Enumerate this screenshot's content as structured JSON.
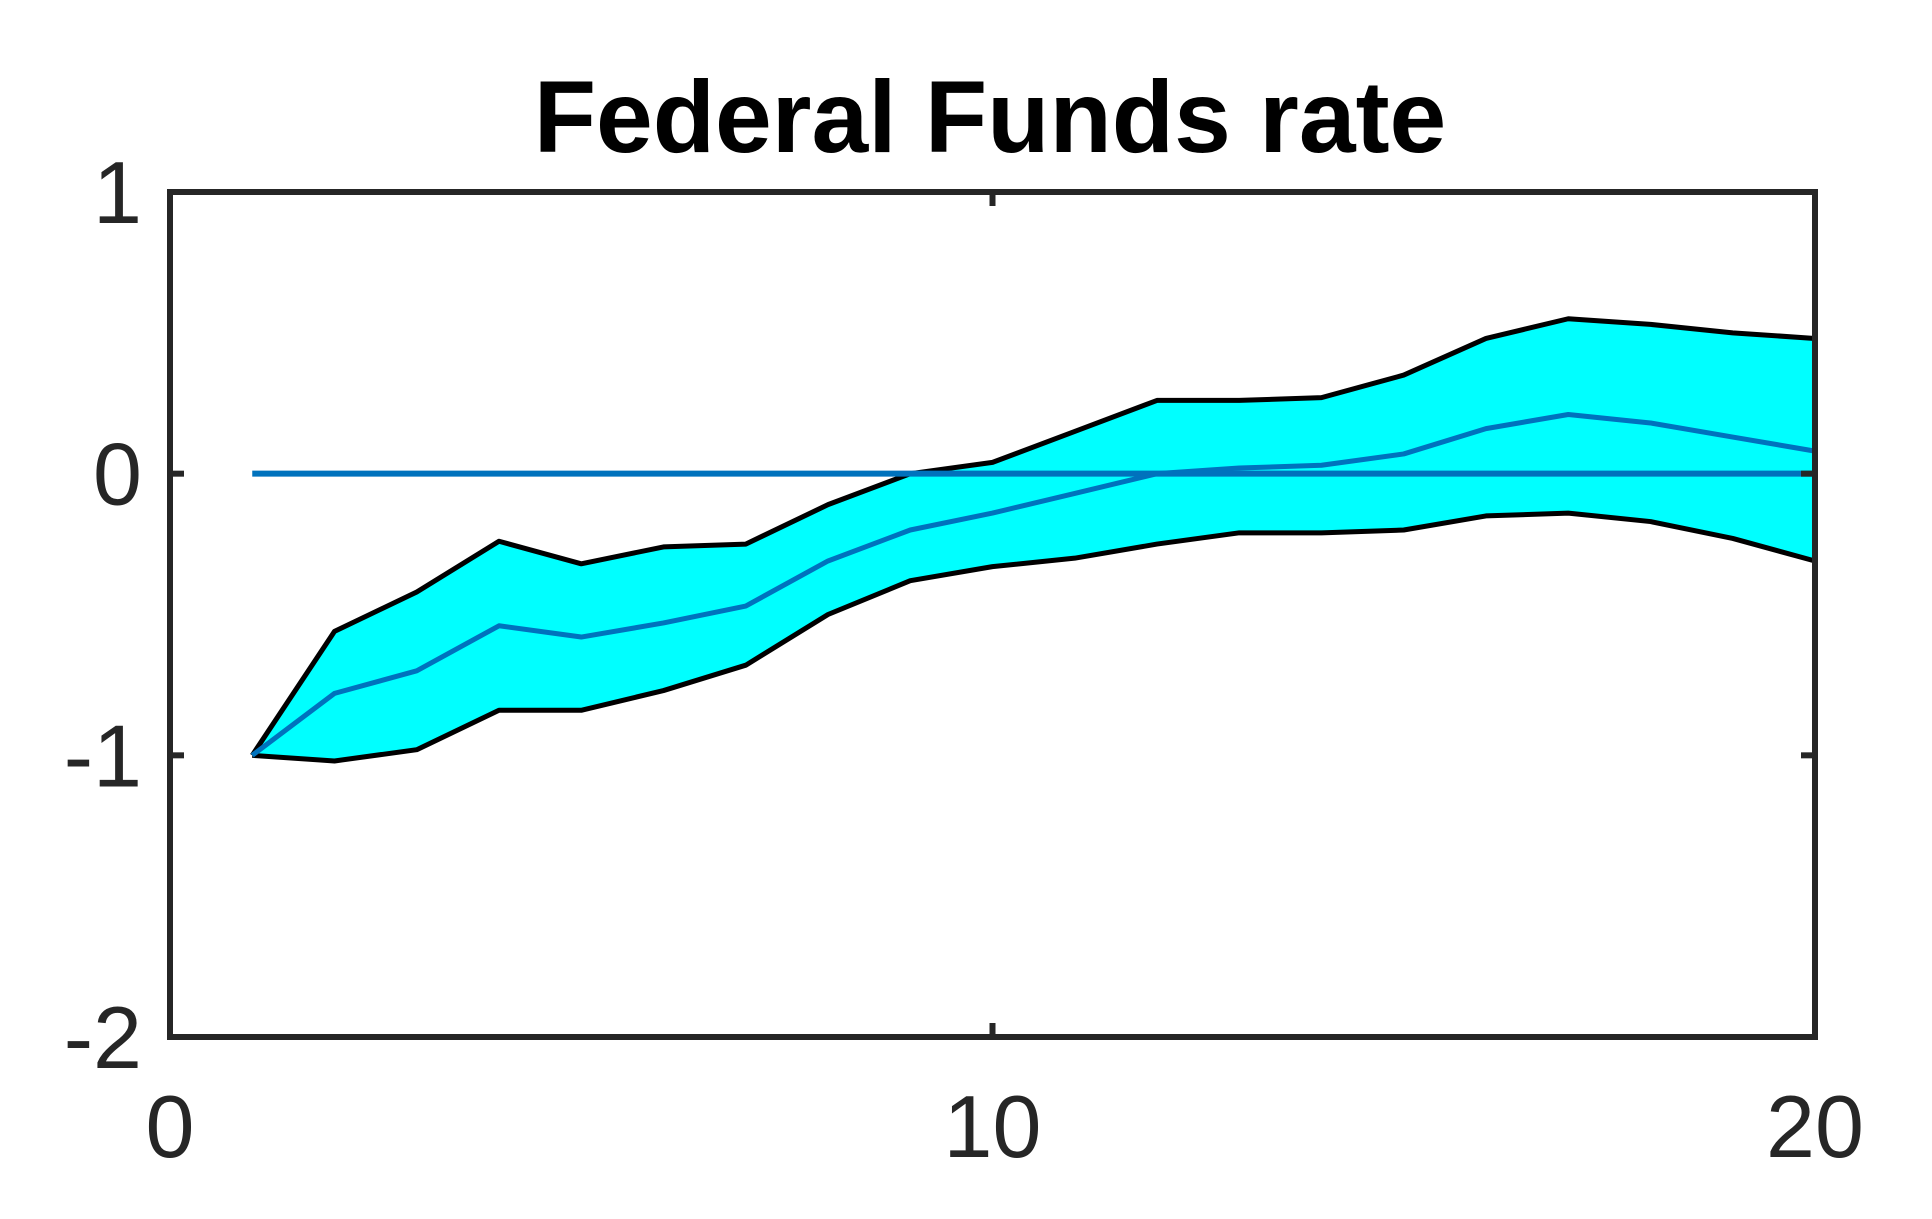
{
  "chart_data": {
    "type": "line",
    "title": "Federal Funds rate",
    "xlabel": "",
    "ylabel": "",
    "xlim": [
      0,
      20
    ],
    "ylim": [
      -2,
      1
    ],
    "xticks": [
      0,
      10,
      20
    ],
    "xtick_labels": [
      "0",
      "10",
      "20"
    ],
    "yticks": [
      -2,
      -1,
      0,
      1
    ],
    "ytick_labels": [
      "-2",
      "-1",
      "0",
      "1"
    ],
    "grid": false,
    "x": [
      1,
      2,
      3,
      4,
      5,
      6,
      7,
      8,
      9,
      10,
      11,
      12,
      13,
      14,
      15,
      16,
      17,
      18,
      19,
      20
    ],
    "series": [
      {
        "role": "median",
        "values": [
          -1.0,
          -0.78,
          -0.7,
          -0.54,
          -0.58,
          -0.53,
          -0.47,
          -0.31,
          -0.2,
          -0.14,
          -0.07,
          0.0,
          0.02,
          0.03,
          0.07,
          0.16,
          0.21,
          0.18,
          0.13,
          0.08
        ]
      },
      {
        "role": "upper",
        "values": [
          -1.0,
          -0.56,
          -0.42,
          -0.24,
          -0.32,
          -0.26,
          -0.25,
          -0.11,
          -0.0,
          0.04,
          0.15,
          0.26,
          0.26,
          0.27,
          0.35,
          0.48,
          0.55,
          0.53,
          0.5,
          0.48
        ]
      },
      {
        "role": "lower",
        "values": [
          -1.0,
          -1.02,
          -0.98,
          -0.84,
          -0.84,
          -0.77,
          -0.68,
          -0.5,
          -0.38,
          -0.33,
          -0.3,
          -0.25,
          -0.21,
          -0.21,
          -0.2,
          -0.15,
          -0.14,
          -0.17,
          -0.23,
          -0.31
        ]
      },
      {
        "role": "zero-line",
        "x": [
          1,
          20
        ],
        "values": [
          0,
          0
        ]
      }
    ],
    "colors": {
      "band_fill": "#00FFFF",
      "band_edge": "#000000",
      "median_line": "#0072BD",
      "zero_line": "#0072BD",
      "axes": "#262626"
    }
  }
}
